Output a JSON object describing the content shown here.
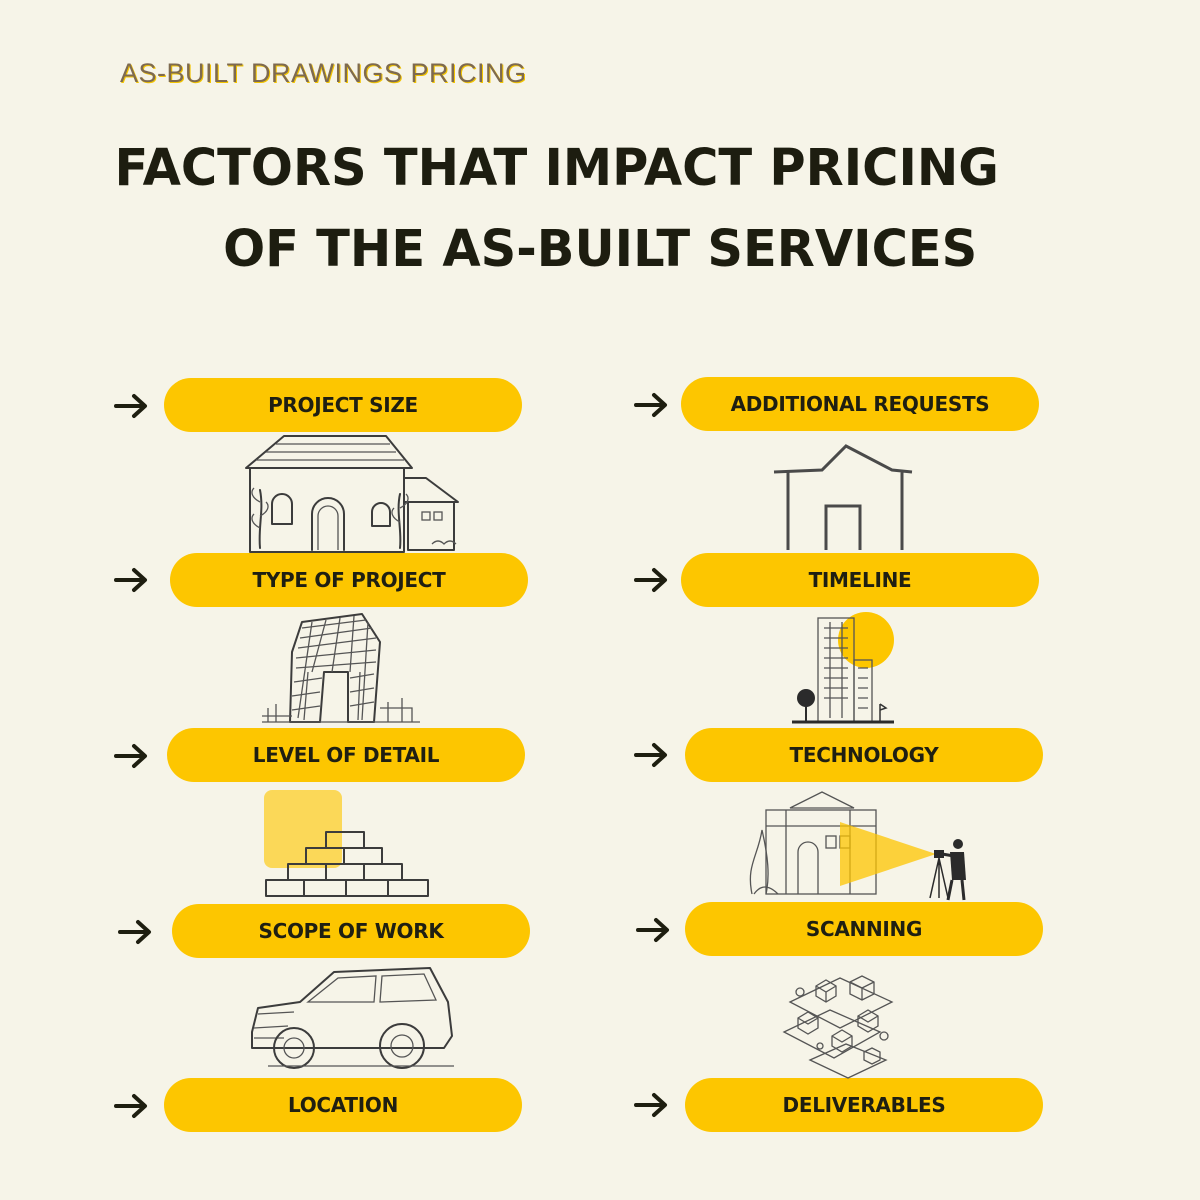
{
  "eyebrow": "AS-BUILT DRAWINGS PRICING",
  "headline": {
    "line1": "FACTORS THAT IMPACT PRICING",
    "line2": "OF THE AS-BUILT SERVICES"
  },
  "accent_color": "#fdc600",
  "left_factors": [
    {
      "label": "PROJECT SIZE",
      "icon": "house-sketch-icon"
    },
    {
      "label": "TYPE OF PROJECT",
      "icon": "modern-building-sketch-icon"
    },
    {
      "label": "LEVEL OF DETAIL",
      "icon": "brick-pyramid-icon"
    },
    {
      "label": "SCOPE OF WORK",
      "icon": "suv-car-icon"
    },
    {
      "label": "LOCATION",
      "icon": ""
    }
  ],
  "right_factors": [
    {
      "label": "ADDITIONAL REQUESTS",
      "icon": "house-outline-icon"
    },
    {
      "label": "TIMELINE",
      "icon": "city-buildings-sun-icon"
    },
    {
      "label": "TECHNOLOGY",
      "icon": "surveyor-scanning-building-icon"
    },
    {
      "label": "SCANNING",
      "icon": "isometric-neighborhood-icon"
    },
    {
      "label": "DELIVERABLES",
      "icon": ""
    }
  ]
}
